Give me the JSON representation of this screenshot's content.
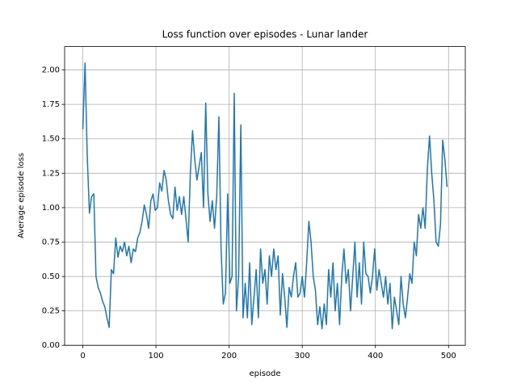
{
  "chart_data": {
    "type": "line",
    "title": "Loss function over episodes - Lunar lander",
    "x_label": "episode",
    "y_label": "Average episode loss",
    "x": [
      0,
      3,
      6,
      9,
      12,
      15,
      18,
      21,
      24,
      27,
      30,
      33,
      36,
      39,
      42,
      45,
      48,
      51,
      54,
      57,
      60,
      63,
      66,
      69,
      72,
      75,
      78,
      81,
      84,
      87,
      90,
      93,
      96,
      99,
      102,
      105,
      108,
      111,
      114,
      117,
      120,
      123,
      126,
      129,
      132,
      135,
      138,
      141,
      144,
      147,
      150,
      153,
      156,
      159,
      162,
      165,
      168,
      171,
      174,
      177,
      180,
      183,
      186,
      189,
      192,
      195,
      198,
      201,
      204,
      207,
      210,
      213,
      216,
      219,
      222,
      225,
      228,
      231,
      234,
      237,
      240,
      243,
      246,
      249,
      252,
      255,
      258,
      261,
      264,
      267,
      270,
      273,
      276,
      279,
      282,
      285,
      288,
      291,
      294,
      297,
      300,
      303,
      306,
      309,
      312,
      315,
      318,
      321,
      324,
      327,
      330,
      333,
      336,
      339,
      342,
      345,
      348,
      351,
      354,
      357,
      360,
      363,
      366,
      369,
      372,
      375,
      378,
      381,
      384,
      387,
      390,
      393,
      396,
      399,
      402,
      405,
      408,
      411,
      414,
      417,
      420,
      423,
      426,
      429,
      432,
      435,
      438,
      441,
      444,
      447,
      450,
      453,
      456,
      459,
      462,
      465,
      468,
      471,
      474,
      477,
      480,
      483,
      486,
      489,
      492,
      495,
      498
    ],
    "series": [
      {
        "name": "loss",
        "color": "#1f77b4",
        "values": [
          1.57,
          2.05,
          1.38,
          0.96,
          1.08,
          1.1,
          0.5,
          0.42,
          0.38,
          0.32,
          0.28,
          0.2,
          0.13,
          0.55,
          0.52,
          0.78,
          0.64,
          0.72,
          0.68,
          0.75,
          0.65,
          0.72,
          0.6,
          0.7,
          0.68,
          0.78,
          0.82,
          0.9,
          1.02,
          0.95,
          0.85,
          1.05,
          1.1,
          0.98,
          1.0,
          1.18,
          1.12,
          1.27,
          1.2,
          1.05,
          0.95,
          0.92,
          1.15,
          0.98,
          1.08,
          0.95,
          1.08,
          0.92,
          0.75,
          1.25,
          1.56,
          1.35,
          1.2,
          1.3,
          1.4,
          1.0,
          1.76,
          1.1,
          0.9,
          1.05,
          0.85,
          1.08,
          1.66,
          0.7,
          0.3,
          0.38,
          1.1,
          0.45,
          0.5,
          1.83,
          0.25,
          0.5,
          1.6,
          0.2,
          0.45,
          0.2,
          0.6,
          0.15,
          0.35,
          0.55,
          0.2,
          0.7,
          0.45,
          0.55,
          0.3,
          0.65,
          0.5,
          0.7,
          0.55,
          0.65,
          0.22,
          0.52,
          0.35,
          0.13,
          0.42,
          0.35,
          0.5,
          0.6,
          0.35,
          0.38,
          0.5,
          0.35,
          0.6,
          0.9,
          0.75,
          0.5,
          0.4,
          0.15,
          0.28,
          0.12,
          0.3,
          0.15,
          0.55,
          0.35,
          0.6,
          0.25,
          0.45,
          0.15,
          0.5,
          0.7,
          0.45,
          0.55,
          0.25,
          0.5,
          0.75,
          0.35,
          0.6,
          0.3,
          0.75,
          0.52,
          0.5,
          0.38,
          0.5,
          0.7,
          0.4,
          0.55,
          0.45,
          0.35,
          0.5,
          0.3,
          0.45,
          0.12,
          0.35,
          0.25,
          0.15,
          0.5,
          0.3,
          0.2,
          0.35,
          0.52,
          0.45,
          0.75,
          0.65,
          0.95,
          0.85,
          1.0,
          0.85,
          1.28,
          1.52,
          1.25,
          1.05,
          0.75,
          0.72,
          0.88,
          1.49,
          1.35,
          1.15
        ]
      }
    ],
    "xlim": [
      -24.9,
      522.9
    ],
    "ylim": [
      0,
      2.17
    ],
    "xticks": [
      0,
      100,
      200,
      300,
      400,
      500
    ],
    "yticks": [
      {
        "value": 0,
        "label": "0.00"
      },
      {
        "value": 0.25,
        "label": "0.25"
      },
      {
        "value": 0.5,
        "label": "0.50"
      },
      {
        "value": 0.75,
        "label": "0.75"
      },
      {
        "value": 1,
        "label": "1.00"
      },
      {
        "value": 1.25,
        "label": "1.25"
      },
      {
        "value": 1.5,
        "label": "1.50"
      },
      {
        "value": 1.75,
        "label": "1.75"
      },
      {
        "value": 2,
        "label": "2.00"
      }
    ],
    "grid": true
  }
}
